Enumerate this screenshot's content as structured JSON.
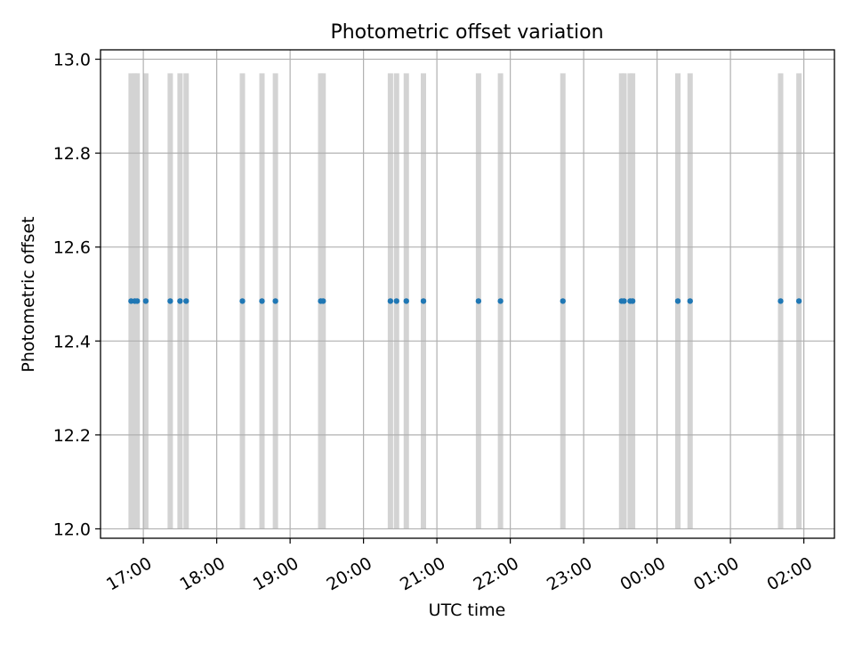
{
  "chart_data": {
    "type": "scatter",
    "title": "Photometric offset variation",
    "xlabel": "UTC time",
    "ylabel": "Photometric offset",
    "xlim": [
      "16:25",
      "26:25"
    ],
    "ylim": [
      11.98,
      13.02
    ],
    "xticks": [
      "17:00",
      "18:00",
      "19:00",
      "20:00",
      "21:00",
      "22:00",
      "23:00",
      "00:00",
      "01:00",
      "02:00"
    ],
    "yticks": [
      "12.0",
      "12.2",
      "12.4",
      "12.6",
      "12.8",
      "13.0"
    ],
    "grid": true,
    "colors": {
      "points": "#1f77b4",
      "bands": "#d3d3d3",
      "grid": "#b0b0b0"
    },
    "bands": {
      "ymin": 12.0,
      "ymax": 12.97
    },
    "points": [
      {
        "x": "16:50",
        "y": 12.485
      },
      {
        "x": "16:53",
        "y": 12.485
      },
      {
        "x": "16:55",
        "y": 12.485
      },
      {
        "x": "17:02",
        "y": 12.485
      },
      {
        "x": "17:22",
        "y": 12.485
      },
      {
        "x": "17:30",
        "y": 12.485
      },
      {
        "x": "17:35",
        "y": 12.485
      },
      {
        "x": "18:21",
        "y": 12.485
      },
      {
        "x": "18:37",
        "y": 12.485
      },
      {
        "x": "18:48",
        "y": 12.485
      },
      {
        "x": "19:25",
        "y": 12.485
      },
      {
        "x": "19:27",
        "y": 12.485
      },
      {
        "x": "20:22",
        "y": 12.485
      },
      {
        "x": "20:27",
        "y": 12.485
      },
      {
        "x": "20:35",
        "y": 12.485
      },
      {
        "x": "20:49",
        "y": 12.485
      },
      {
        "x": "21:34",
        "y": 12.485
      },
      {
        "x": "21:52",
        "y": 12.485
      },
      {
        "x": "22:43",
        "y": 12.485
      },
      {
        "x": "23:31",
        "y": 12.485
      },
      {
        "x": "23:33",
        "y": 12.485
      },
      {
        "x": "23:38",
        "y": 12.485
      },
      {
        "x": "23:40",
        "y": 12.485
      },
      {
        "x": "24:17",
        "y": 12.485
      },
      {
        "x": "24:27",
        "y": 12.485
      },
      {
        "x": "25:41",
        "y": 12.485
      },
      {
        "x": "25:56",
        "y": 12.485
      }
    ]
  }
}
